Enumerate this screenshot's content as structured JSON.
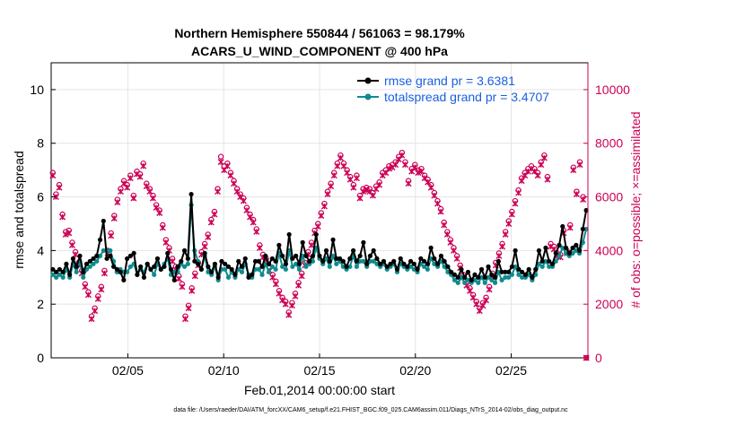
{
  "chart_data": {
    "type": "line",
    "title_line1": "Northern Hemisphere 550844 / 561063 = 98.179%",
    "title_line2": "ACARS_U_WIND_COMPONENT @ 400 hPa",
    "xlabel": "Feb.01,2014 00:00:00 start",
    "ylabel_left": "rmse and totalspread",
    "ylabel_right": "# of obs: o=possible; ×=assimilated",
    "footer": "data file: /Users/raeder/DAI/ATM_forcXX/CAM6_setup/f.e21.FHIST_BGC.f09_025.CAM6assim.011/Diags_NTrS_2014-02/obs_diag_output.nc",
    "xlim": [
      1,
      29
    ],
    "ylim_left": [
      0,
      11
    ],
    "ylim_right": [
      0,
      11000
    ],
    "x_ticks": [
      5,
      10,
      15,
      20,
      25
    ],
    "x_tick_labels": [
      "02/05",
      "02/10",
      "02/15",
      "02/20",
      "02/25"
    ],
    "y_left_ticks": [
      0,
      2,
      4,
      6,
      8,
      10
    ],
    "y_left_tick_labels": [
      "0",
      "2",
      "4",
      "6",
      "8",
      "10"
    ],
    "y_right_ticks": [
      0,
      2000,
      4000,
      6000,
      8000,
      10000
    ],
    "y_right_tick_labels": [
      "0",
      "2000",
      "4000",
      "6000",
      "8000",
      "10000"
    ],
    "grid": true,
    "legend_position": "top-right",
    "colors": {
      "rmse": "#000000",
      "spread": "#0f8b8d",
      "obs": "#cc0055",
      "legend_text": "#1a5fe0",
      "grid": "#e4e4e4"
    },
    "series": [
      {
        "name": "rmse grand pr = 3.6381",
        "axis": "left",
        "values": [
          3.3,
          3.2,
          3.3,
          3.2,
          3.5,
          3.1,
          3.7,
          3.4,
          3.8,
          3.2,
          3.5,
          3.6,
          3.7,
          3.8,
          4.4,
          5.1,
          3.7,
          3.8,
          3.4,
          3.3,
          3.2,
          2.9,
          3.7,
          3.8,
          3.9,
          3.1,
          3.4,
          3.0,
          3.5,
          3.3,
          3.4,
          3.7,
          3.3,
          3.4,
          3.9,
          3.3,
          2.9,
          3.4,
          3.6,
          4.0,
          3.7,
          6.1,
          3.6,
          3.5,
          3.3,
          3.9,
          3.4,
          3.2,
          3.5,
          3.0,
          3.6,
          3.5,
          3.4,
          3.3,
          3.1,
          3.6,
          3.4,
          3.7,
          3.0,
          3.1,
          3.6,
          3.6,
          3.4,
          3.8,
          3.5,
          3.7,
          3.6,
          4.2,
          3.8,
          3.5,
          4.6,
          3.7,
          3.8,
          3.5,
          4.3,
          3.8,
          3.6,
          3.8,
          4.6,
          3.8,
          3.6,
          4.0,
          3.6,
          4.4,
          3.7,
          3.7,
          3.6,
          3.4,
          3.7,
          4.0,
          3.6,
          3.8,
          4.3,
          3.5,
          3.8,
          4.0,
          3.7,
          3.5,
          3.6,
          3.4,
          3.5,
          3.6,
          3.3,
          3.7,
          3.5,
          3.4,
          3.6,
          3.5,
          3.3,
          3.7,
          3.6,
          3.5,
          4.1,
          3.7,
          3.5,
          3.8,
          3.6,
          3.4,
          3.2,
          3.1,
          3.0,
          3.3,
          3.0,
          3.2,
          2.9,
          3.1,
          3.0,
          3.3,
          3.0,
          3.4,
          3.1,
          3.0,
          3.6,
          3.2,
          3.2,
          3.2,
          3.4,
          4.0,
          3.3,
          3.2,
          3.1,
          3.3,
          3.0,
          3.3,
          4.0,
          3.6,
          4.1,
          3.6,
          3.5,
          3.9,
          4.2,
          4.9,
          4.1,
          3.9,
          4.1,
          4.2,
          4.0,
          4.8,
          5.5
        ]
      },
      {
        "name": "totalspread grand pr = 3.4707",
        "axis": "left",
        "values": [
          3.1,
          3.0,
          3.1,
          3.0,
          3.3,
          3.0,
          3.5,
          3.2,
          3.6,
          3.0,
          3.3,
          3.4,
          3.5,
          3.6,
          3.8,
          4.0,
          4.0,
          4.0,
          3.6,
          3.2,
          3.3,
          3.2,
          3.2,
          3.4,
          3.5,
          3.1,
          3.3,
          3.2,
          3.5,
          3.3,
          3.1,
          3.5,
          3.3,
          3.5,
          3.7,
          3.1,
          3.2,
          3.2,
          3.5,
          3.4,
          3.5,
          5.7,
          4.0,
          3.6,
          3.3,
          3.8,
          3.2,
          3.1,
          3.4,
          2.9,
          3.3,
          3.3,
          3.0,
          3.2,
          3.0,
          3.3,
          3.2,
          3.5,
          3.1,
          3.0,
          3.3,
          3.3,
          3.1,
          3.5,
          3.2,
          3.4,
          3.3,
          3.9,
          3.4,
          3.3,
          4.0,
          3.4,
          3.5,
          3.3,
          3.8,
          3.4,
          3.5,
          3.6,
          4.1,
          3.7,
          3.5,
          3.7,
          3.4,
          3.8,
          3.5,
          3.6,
          3.4,
          3.3,
          3.4,
          3.8,
          3.4,
          3.6,
          3.6,
          3.4,
          3.6,
          3.6,
          3.5,
          3.4,
          3.5,
          3.3,
          3.4,
          3.5,
          3.2,
          3.5,
          3.4,
          3.3,
          3.4,
          3.3,
          3.2,
          3.5,
          3.4,
          3.3,
          3.7,
          3.5,
          3.4,
          3.6,
          3.4,
          3.2,
          3.1,
          2.9,
          2.8,
          3.0,
          2.8,
          2.9,
          2.8,
          2.9,
          2.8,
          3.0,
          2.8,
          3.0,
          2.9,
          2.8,
          3.2,
          2.9,
          3.0,
          3.0,
          3.1,
          3.4,
          3.1,
          3.0,
          3.0,
          3.1,
          2.9,
          3.1,
          3.5,
          3.4,
          3.6,
          3.4,
          3.4,
          3.6,
          3.8,
          4.1,
          3.9,
          3.8,
          3.9,
          4.0,
          3.9,
          4.3,
          4.8
        ]
      },
      {
        "name": "possible obs",
        "axis": "right",
        "values": [
          6900,
          6100,
          6450,
          5350,
          4700,
          4750,
          4300,
          3950,
          3550,
          3250,
          2750,
          2450,
          1550,
          1850,
          2300,
          2650,
          3250,
          4000,
          4650,
          5300,
          5900,
          6300,
          6600,
          6450,
          6800,
          6050,
          6950,
          6850,
          7250,
          6500,
          6300,
          6050,
          5700,
          5500,
          4950,
          4400,
          4100,
          3700,
          3400,
          3050,
          2750,
          1550,
          1950,
          2600,
          3150,
          3550,
          3950,
          4250,
          4600,
          5150,
          5450,
          6300,
          7500,
          7150,
          7250,
          6900,
          6600,
          6300,
          6100,
          5950,
          5600,
          5350,
          5150,
          4800,
          4200,
          3850,
          3700,
          3350,
          3100,
          2850,
          2500,
          2250,
          2100,
          1700,
          2050,
          2400,
          2800,
          3150,
          3550,
          3950,
          4300,
          4750,
          5000,
          5400,
          5750,
          6200,
          6500,
          6900,
          7250,
          7550,
          7250,
          7000,
          6750,
          6450,
          6800,
          6050,
          6300,
          6350,
          6300,
          6150,
          6400,
          6550,
          6900,
          7000,
          7150,
          7200,
          7300,
          7500,
          7650,
          7300,
          6600,
          7050,
          7200,
          7000,
          7050,
          6800,
          6650,
          6450,
          6150,
          5850,
          5550,
          5050,
          4700,
          4400,
          4100,
          3800,
          3450,
          3100,
          2800,
          2600,
          2350,
          2100,
          1850,
          2050,
          2250,
          2650,
          3150,
          3550,
          3900,
          4250,
          4700,
          5100,
          5450,
          5850,
          6250,
          6700,
          6900,
          7050,
          7150,
          7050,
          6900,
          7300,
          7550,
          6750,
          4250,
          4150,
          3900,
          3850,
          4750,
          4000,
          4950,
          7100,
          6200,
          7300,
          6000,
          0
        ]
      },
      {
        "name": "assimilated obs",
        "axis": "right",
        "values": [
          6800,
          6000,
          6350,
          5250,
          4600,
          4650,
          4200,
          3850,
          3450,
          3150,
          2650,
          2350,
          1450,
          1750,
          2200,
          2550,
          3150,
          3900,
          4550,
          5200,
          5800,
          6200,
          6500,
          6350,
          6700,
          5950,
          6850,
          6750,
          7150,
          6400,
          6200,
          5950,
          5600,
          5400,
          4850,
          4300,
          4000,
          3600,
          3300,
          2950,
          2650,
          1450,
          1850,
          2500,
          3050,
          3450,
          3850,
          4150,
          4500,
          5050,
          5350,
          6200,
          7300,
          7000,
          7150,
          6800,
          6500,
          6200,
          6000,
          5850,
          5500,
          5250,
          5050,
          4700,
          4100,
          3750,
          3600,
          3250,
          3000,
          2750,
          2400,
          2150,
          2000,
          1600,
          1950,
          2300,
          2700,
          3050,
          3450,
          3850,
          4200,
          4650,
          4900,
          5300,
          5650,
          6100,
          6400,
          6800,
          7150,
          7450,
          7150,
          6900,
          6650,
          6350,
          6700,
          5950,
          6200,
          6250,
          6200,
          6050,
          6300,
          6450,
          6800,
          6900,
          7050,
          7100,
          7200,
          7400,
          7550,
          7200,
          6500,
          6950,
          7100,
          6900,
          6950,
          6700,
          6550,
          6350,
          6050,
          5750,
          5450,
          4950,
          4600,
          4300,
          4000,
          3700,
          3350,
          3000,
          2700,
          2500,
          2250,
          2000,
          1750,
          1950,
          2150,
          2550,
          3050,
          3450,
          3800,
          4150,
          4600,
          5000,
          5350,
          5750,
          6150,
          6600,
          6800,
          6950,
          7050,
          6950,
          6800,
          7200,
          7450,
          6650,
          4150,
          4050,
          3800,
          3750,
          4650,
          3900,
          4850,
          7000,
          6100,
          7200,
          5900,
          0
        ]
      }
    ]
  }
}
